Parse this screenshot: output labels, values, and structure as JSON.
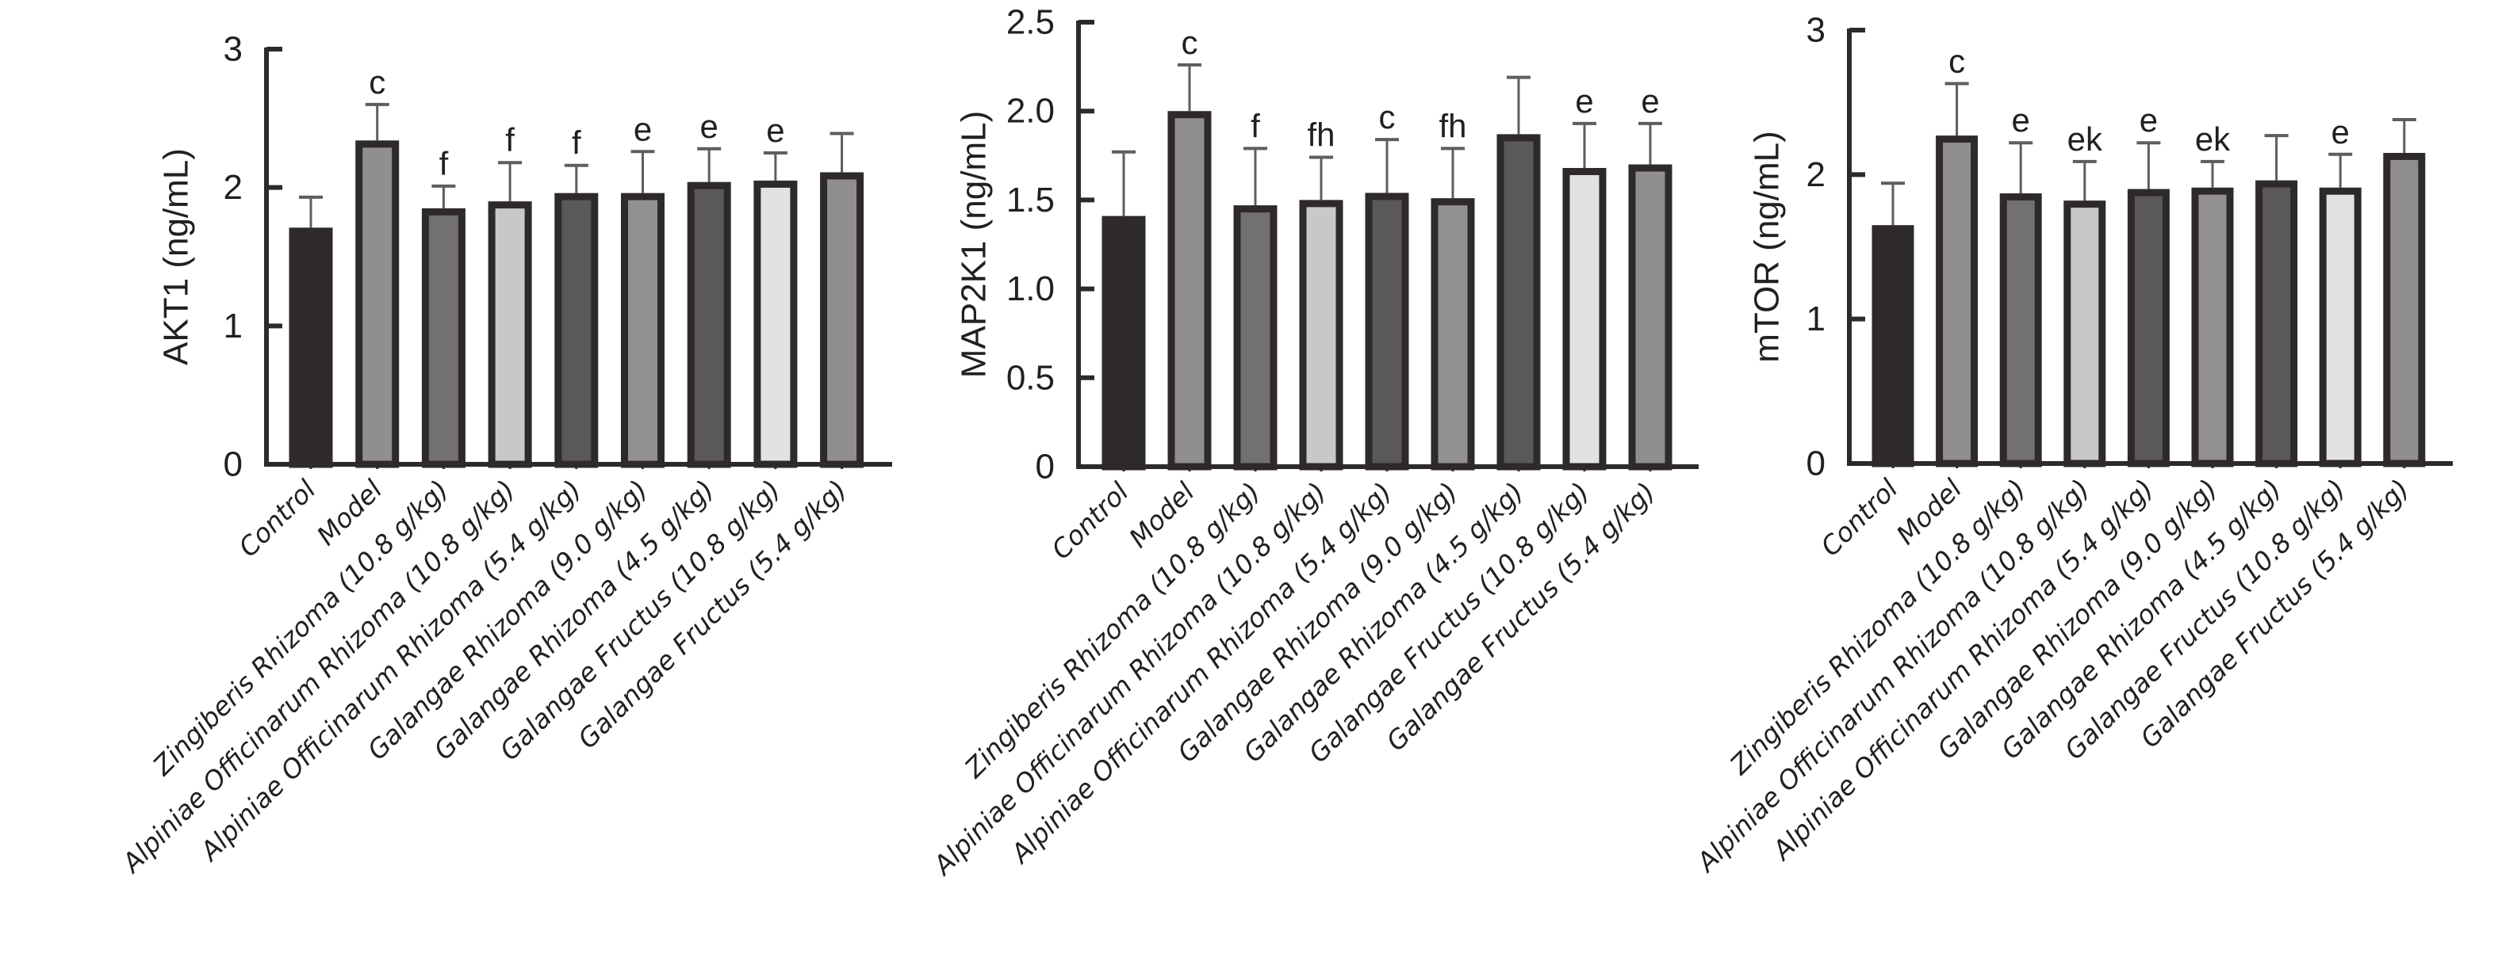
{
  "chart_data": [
    {
      "type": "bar",
      "title": "",
      "xlabel": "",
      "ylabel": "AKT1 (ng/mL)",
      "ylim": [
        0,
        3
      ],
      "yticks": [
        0,
        1,
        2,
        3
      ],
      "ytick_labels": [
        "0",
        "1",
        "2",
        "3"
      ],
      "categories": [
        "Control",
        "Model",
        "Zingiberis Rhizoma (10.8 g/kg)",
        "Alpiniae Officinarum Rhizoma (10.8 g/kg)",
        "Alpiniae Officinarum Rhizoma (5.4 g/kg)",
        "Galangae Rhizoma (9.0 g/kg)",
        "Galangae Rhizoma (4.5 g/kg)",
        "Galangae Fructus (10.8 g/kg)",
        "Galangae Fructus (5.4 g/kg)"
      ],
      "values": [
        1.71,
        2.34,
        1.85,
        1.9,
        1.96,
        1.96,
        2.04,
        2.05,
        2.11
      ],
      "error_upper": [
        1.93,
        2.6,
        2.01,
        2.18,
        2.16,
        2.26,
        2.28,
        2.25,
        2.39
      ],
      "annotations": [
        "",
        "c",
        "f",
        "f",
        "f",
        "e",
        "e",
        "e",
        ""
      ]
    },
    {
      "type": "bar",
      "title": "",
      "xlabel": "",
      "ylabel": "MAP2K1 (ng/mL)",
      "ylim": [
        0,
        2.5
      ],
      "yticks": [
        0,
        0.5,
        1.0,
        1.5,
        2.0,
        2.5
      ],
      "ytick_labels": [
        "0",
        "0.5",
        "1.0",
        "1.5",
        "2.0",
        "2.5"
      ],
      "categories": [
        "Control",
        "Model",
        "Zingiberis Rhizoma (10.8 g/kg)",
        "Alpiniae Officinarum Rhizoma (10.8 g/kg)",
        "Alpiniae Officinarum Rhizoma (5.4 g/kg)",
        "Galangae Rhizoma (9.0 g/kg)",
        "Galangae Rhizoma (4.5 g/kg)",
        "Galangae Fructus (10.8 g/kg)",
        "Galangae Fructus (5.4 g/kg)"
      ],
      "values": [
        1.41,
        2.0,
        1.47,
        1.5,
        1.54,
        1.51,
        1.87,
        1.68,
        1.7
      ],
      "error_upper": [
        1.77,
        2.26,
        1.79,
        1.74,
        1.84,
        1.79,
        2.19,
        1.93,
        1.93
      ],
      "annotations": [
        "",
        "c",
        "f",
        "fh",
        "c",
        "fh",
        "",
        "e",
        "e"
      ]
    },
    {
      "type": "bar",
      "title": "",
      "xlabel": "",
      "ylabel": "mTOR (ng/mL)",
      "ylim": [
        0,
        3
      ],
      "yticks": [
        0,
        1,
        2,
        3
      ],
      "ytick_labels": [
        "0",
        "1",
        "2",
        "3"
      ],
      "categories": [
        "Control",
        "Model",
        "Zingiberis Rhizoma (10.8 g/kg)",
        "Alpiniae Officinarum Rhizoma (10.8 g/kg)",
        "Alpiniae Officinarum Rhizoma (5.4 g/kg)",
        "Galangae Rhizoma (9.0 g/kg)",
        "Galangae Rhizoma (4.5 g/kg)",
        "Galangae Fructus (10.8 g/kg)",
        "Galangae Fructus (5.4 g/kg)"
      ],
      "values": [
        1.65,
        2.27,
        1.87,
        1.82,
        1.9,
        1.91,
        1.96,
        1.91,
        2.15
      ],
      "error_upper": [
        1.94,
        2.63,
        2.22,
        2.09,
        2.22,
        2.09,
        2.27,
        2.14,
        2.38
      ],
      "annotations": [
        "",
        "c",
        "e",
        "ek",
        "e",
        "ek",
        "",
        "e",
        ""
      ]
    }
  ],
  "style": {
    "bar_fills": [
      "#2e2a2b",
      "#908e8f",
      "#727071",
      "#c8c8c8",
      "#5a5859",
      "#929091",
      "#5a5859",
      "#e2e2e2",
      "#908e8f"
    ],
    "outline_color": "#2e2a2b",
    "error_color": "#5f5d5e"
  }
}
